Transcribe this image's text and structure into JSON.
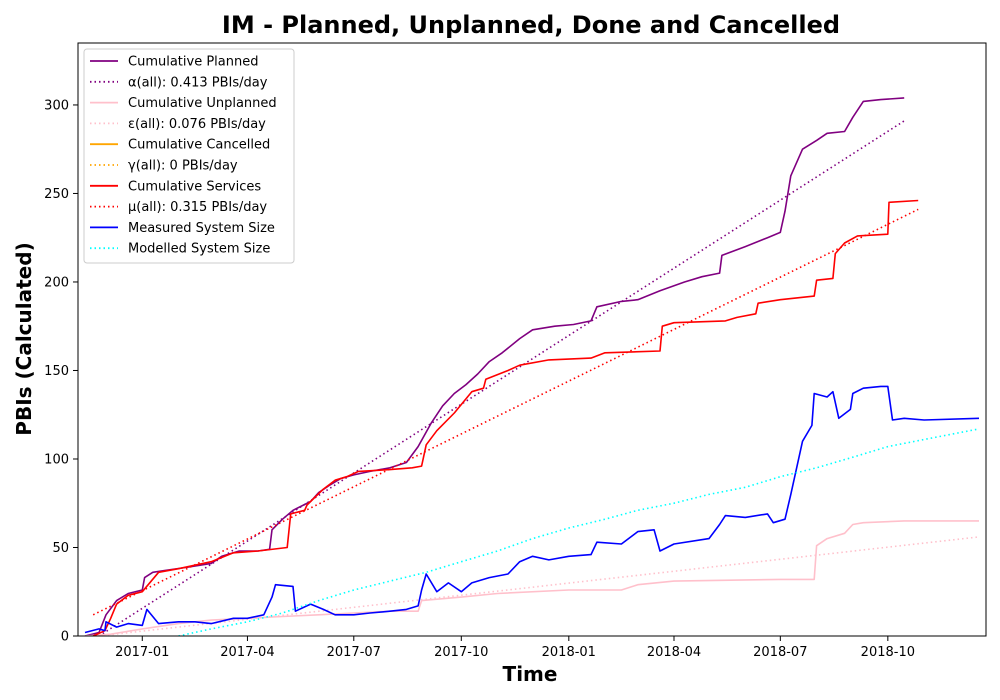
{
  "chart_data": {
    "type": "line",
    "title": "IM - Planned, Unplanned, Done  and Cancelled",
    "xlabel": "Time",
    "ylabel": "PBIs (Calculated)",
    "xlim": [
      "2016-11-07",
      "2018-12-24"
    ],
    "ylim": [
      0,
      335
    ],
    "x_ticks": [
      "2017-01",
      "2017-04",
      "2017-07",
      "2017-10",
      "2018-01",
      "2018-04",
      "2018-07",
      "2018-10"
    ],
    "x_tick_dates": [
      "2017-01-01",
      "2017-04-01",
      "2017-07-01",
      "2017-10-01",
      "2018-01-01",
      "2018-04-01",
      "2018-07-01",
      "2018-10-01"
    ],
    "y_ticks": [
      0,
      50,
      100,
      150,
      200,
      250,
      300
    ],
    "legend_position": "upper-left",
    "grid": false,
    "series": [
      {
        "name": "Cumulative Planned",
        "color": "#800080",
        "style": "solid",
        "points": [
          [
            "2016-11-13",
            0
          ],
          [
            "2016-11-25",
            2
          ],
          [
            "2016-12-01",
            12
          ],
          [
            "2016-12-10",
            20
          ],
          [
            "2016-12-20",
            24
          ],
          [
            "2017-01-01",
            26
          ],
          [
            "2017-01-03",
            33
          ],
          [
            "2017-01-10",
            36
          ],
          [
            "2017-01-20",
            37
          ],
          [
            "2017-02-10",
            39
          ],
          [
            "2017-03-01",
            41
          ],
          [
            "2017-03-10",
            45
          ],
          [
            "2017-03-25",
            48
          ],
          [
            "2017-04-10",
            48
          ],
          [
            "2017-04-20",
            49
          ],
          [
            "2017-04-22",
            60
          ],
          [
            "2017-05-01",
            66
          ],
          [
            "2017-05-10",
            71
          ],
          [
            "2017-05-25",
            76
          ],
          [
            "2017-06-01",
            81
          ],
          [
            "2017-06-10",
            85
          ],
          [
            "2017-06-20",
            89
          ],
          [
            "2017-07-01",
            91
          ],
          [
            "2017-07-15",
            93
          ],
          [
            "2017-08-01",
            95
          ],
          [
            "2017-08-15",
            98
          ],
          [
            "2017-08-25",
            107
          ],
          [
            "2017-09-05",
            120
          ],
          [
            "2017-09-15",
            130
          ],
          [
            "2017-09-25",
            137
          ],
          [
            "2017-10-05",
            142
          ],
          [
            "2017-10-15",
            148
          ],
          [
            "2017-10-25",
            155
          ],
          [
            "2017-11-05",
            160
          ],
          [
            "2017-11-20",
            168
          ],
          [
            "2017-12-01",
            173
          ],
          [
            "2017-12-20",
            175
          ],
          [
            "2018-01-05",
            176
          ],
          [
            "2018-01-20",
            178
          ],
          [
            "2018-01-25",
            186
          ],
          [
            "2018-02-15",
            189
          ],
          [
            "2018-03-01",
            190
          ],
          [
            "2018-03-20",
            195
          ],
          [
            "2018-04-10",
            200
          ],
          [
            "2018-04-25",
            203
          ],
          [
            "2018-05-10",
            205
          ],
          [
            "2018-05-12",
            215
          ],
          [
            "2018-06-01",
            220
          ],
          [
            "2018-06-20",
            225
          ],
          [
            "2018-07-01",
            228
          ],
          [
            "2018-07-05",
            240
          ],
          [
            "2018-07-10",
            260
          ],
          [
            "2018-07-20",
            275
          ],
          [
            "2018-08-01",
            280
          ],
          [
            "2018-08-10",
            284
          ],
          [
            "2018-08-25",
            285
          ],
          [
            "2018-09-01",
            293
          ],
          [
            "2018-09-10",
            302
          ],
          [
            "2018-09-25",
            303
          ],
          [
            "2018-10-15",
            304
          ]
        ]
      },
      {
        "name": "α(all): 0.413 PBIs/day",
        "color": "#800080",
        "style": "dotted",
        "points": [
          [
            "2016-11-25",
            0
          ],
          [
            "2018-10-15",
            291
          ]
        ]
      },
      {
        "name": "Cumulative Unplanned",
        "color": "#ffc0cb",
        "style": "solid",
        "points": [
          [
            "2016-11-13",
            0
          ],
          [
            "2016-12-05",
            1
          ],
          [
            "2017-01-01",
            4
          ],
          [
            "2017-02-01",
            7
          ],
          [
            "2017-03-01",
            9
          ],
          [
            "2017-04-01",
            10
          ],
          [
            "2017-05-01",
            11
          ],
          [
            "2017-06-01",
            12
          ],
          [
            "2017-07-01",
            13
          ],
          [
            "2017-08-01",
            14
          ],
          [
            "2017-08-25",
            14
          ],
          [
            "2017-08-28",
            20
          ],
          [
            "2017-10-01",
            22
          ],
          [
            "2017-11-01",
            24
          ],
          [
            "2018-01-01",
            26
          ],
          [
            "2018-02-15",
            26
          ],
          [
            "2018-03-01",
            29
          ],
          [
            "2018-04-01",
            31
          ],
          [
            "2018-07-01",
            32
          ],
          [
            "2018-07-30",
            32
          ],
          [
            "2018-08-01",
            51
          ],
          [
            "2018-08-10",
            55
          ],
          [
            "2018-08-25",
            58
          ],
          [
            "2018-09-01",
            63
          ],
          [
            "2018-09-10",
            64
          ],
          [
            "2018-10-15",
            65
          ],
          [
            "2018-12-18",
            65
          ]
        ]
      },
      {
        "name": "ε(all): 0.076 PBIs/day",
        "color": "#ffc0cb",
        "style": "dotted",
        "points": [
          [
            "2016-11-25",
            0
          ],
          [
            "2018-12-18",
            56
          ]
        ]
      },
      {
        "name": "Cumulative Cancelled",
        "color": "#ffa500",
        "style": "solid",
        "points": []
      },
      {
        "name": "γ(all): 0 PBIs/day",
        "color": "#ffa500",
        "style": "dotted",
        "points": []
      },
      {
        "name": "Cumulative Services",
        "color": "#ff0000",
        "style": "solid",
        "points": [
          [
            "2016-11-20",
            0
          ],
          [
            "2016-11-30",
            3
          ],
          [
            "2016-12-05",
            10
          ],
          [
            "2016-12-10",
            18
          ],
          [
            "2016-12-20",
            23
          ],
          [
            "2017-01-01",
            25
          ],
          [
            "2017-01-15",
            36
          ],
          [
            "2017-02-01",
            38
          ],
          [
            "2017-03-01",
            42
          ],
          [
            "2017-03-20",
            47
          ],
          [
            "2017-04-10",
            48
          ],
          [
            "2017-05-05",
            50
          ],
          [
            "2017-05-08",
            69
          ],
          [
            "2017-05-20",
            71
          ],
          [
            "2017-05-22",
            74
          ],
          [
            "2017-06-05",
            83
          ],
          [
            "2017-06-15",
            88
          ],
          [
            "2017-06-25",
            90
          ],
          [
            "2017-07-05",
            93
          ],
          [
            "2017-08-01",
            94
          ],
          [
            "2017-08-20",
            95
          ],
          [
            "2017-08-28",
            96
          ],
          [
            "2017-09-01",
            108
          ],
          [
            "2017-09-10",
            116
          ],
          [
            "2017-09-25",
            126
          ],
          [
            "2017-10-10",
            138
          ],
          [
            "2017-10-20",
            140
          ],
          [
            "2017-10-22",
            145
          ],
          [
            "2017-11-10",
            150
          ],
          [
            "2017-11-20",
            153
          ],
          [
            "2017-12-15",
            156
          ],
          [
            "2018-01-20",
            157
          ],
          [
            "2018-02-01",
            160
          ],
          [
            "2018-03-20",
            161
          ],
          [
            "2018-03-22",
            175
          ],
          [
            "2018-04-01",
            177
          ],
          [
            "2018-05-15",
            178
          ],
          [
            "2018-05-25",
            180
          ],
          [
            "2018-06-10",
            182
          ],
          [
            "2018-06-12",
            188
          ],
          [
            "2018-07-01",
            190
          ],
          [
            "2018-07-30",
            192
          ],
          [
            "2018-08-01",
            201
          ],
          [
            "2018-08-15",
            202
          ],
          [
            "2018-08-17",
            216
          ],
          [
            "2018-08-25",
            222
          ],
          [
            "2018-09-05",
            226
          ],
          [
            "2018-10-01",
            227
          ],
          [
            "2018-10-02",
            245
          ],
          [
            "2018-10-27",
            246
          ]
        ]
      },
      {
        "name": "μ(all): 0.315 PBIs/day",
        "color": "#ff0000",
        "style": "dotted",
        "points": [
          [
            "2016-11-20",
            12
          ],
          [
            "2018-10-27",
            241
          ]
        ]
      },
      {
        "name": "Measured System Size",
        "color": "#0000ff",
        "style": "solid",
        "points": [
          [
            "2016-11-13",
            2
          ],
          [
            "2016-11-25",
            4
          ],
          [
            "2016-11-30",
            3
          ],
          [
            "2016-12-01",
            8
          ],
          [
            "2016-12-10",
            5
          ],
          [
            "2016-12-20",
            7
          ],
          [
            "2017-01-01",
            6
          ],
          [
            "2017-01-05",
            15
          ],
          [
            "2017-01-15",
            7
          ],
          [
            "2017-02-01",
            8
          ],
          [
            "2017-02-15",
            8
          ],
          [
            "2017-03-01",
            7
          ],
          [
            "2017-03-20",
            10
          ],
          [
            "2017-04-01",
            10
          ],
          [
            "2017-04-15",
            12
          ],
          [
            "2017-04-22",
            22
          ],
          [
            "2017-04-25",
            29
          ],
          [
            "2017-05-10",
            28
          ],
          [
            "2017-05-12",
            14
          ],
          [
            "2017-05-25",
            18
          ],
          [
            "2017-06-05",
            15
          ],
          [
            "2017-06-15",
            12
          ],
          [
            "2017-07-01",
            12
          ],
          [
            "2017-07-15",
            13
          ],
          [
            "2017-08-01",
            14
          ],
          [
            "2017-08-15",
            15
          ],
          [
            "2017-08-25",
            17
          ],
          [
            "2017-08-28",
            26
          ],
          [
            "2017-09-01",
            35
          ],
          [
            "2017-09-10",
            25
          ],
          [
            "2017-09-20",
            30
          ],
          [
            "2017-10-01",
            25
          ],
          [
            "2017-10-10",
            30
          ],
          [
            "2017-10-25",
            33
          ],
          [
            "2017-11-10",
            35
          ],
          [
            "2017-11-20",
            42
          ],
          [
            "2017-12-01",
            45
          ],
          [
            "2017-12-15",
            43
          ],
          [
            "2018-01-01",
            45
          ],
          [
            "2018-01-20",
            46
          ],
          [
            "2018-01-25",
            53
          ],
          [
            "2018-02-15",
            52
          ],
          [
            "2018-03-01",
            59
          ],
          [
            "2018-03-15",
            60
          ],
          [
            "2018-03-20",
            48
          ],
          [
            "2018-04-01",
            52
          ],
          [
            "2018-05-01",
            55
          ],
          [
            "2018-05-10",
            63
          ],
          [
            "2018-05-15",
            68
          ],
          [
            "2018-06-01",
            67
          ],
          [
            "2018-06-20",
            69
          ],
          [
            "2018-06-25",
            64
          ],
          [
            "2018-07-05",
            66
          ],
          [
            "2018-07-10",
            80
          ],
          [
            "2018-07-20",
            110
          ],
          [
            "2018-07-28",
            119
          ],
          [
            "2018-07-30",
            137
          ],
          [
            "2018-08-10",
            135
          ],
          [
            "2018-08-15",
            138
          ],
          [
            "2018-08-20",
            123
          ],
          [
            "2018-08-30",
            128
          ],
          [
            "2018-09-01",
            137
          ],
          [
            "2018-09-10",
            140
          ],
          [
            "2018-09-25",
            141
          ],
          [
            "2018-10-01",
            141
          ],
          [
            "2018-10-05",
            122
          ],
          [
            "2018-10-15",
            123
          ],
          [
            "2018-11-01",
            122
          ],
          [
            "2018-12-18",
            123
          ]
        ]
      },
      {
        "name": "Modelled System Size",
        "color": "#00ffff",
        "style": "dotted",
        "points": [
          [
            "2017-02-01",
            0
          ],
          [
            "2017-03-01",
            4
          ],
          [
            "2017-04-01",
            8
          ],
          [
            "2017-05-01",
            13
          ],
          [
            "2017-06-01",
            20
          ],
          [
            "2017-07-01",
            26
          ],
          [
            "2017-08-01",
            31
          ],
          [
            "2017-09-01",
            36
          ],
          [
            "2017-10-01",
            42
          ],
          [
            "2017-11-01",
            48
          ],
          [
            "2017-12-01",
            55
          ],
          [
            "2018-01-01",
            61
          ],
          [
            "2018-02-01",
            66
          ],
          [
            "2018-03-01",
            71
          ],
          [
            "2018-04-01",
            75
          ],
          [
            "2018-05-01",
            80
          ],
          [
            "2018-06-01",
            84
          ],
          [
            "2018-07-01",
            90
          ],
          [
            "2018-08-01",
            95
          ],
          [
            "2018-09-01",
            101
          ],
          [
            "2018-10-01",
            107
          ],
          [
            "2018-11-01",
            111
          ],
          [
            "2018-12-18",
            117
          ]
        ]
      }
    ]
  }
}
